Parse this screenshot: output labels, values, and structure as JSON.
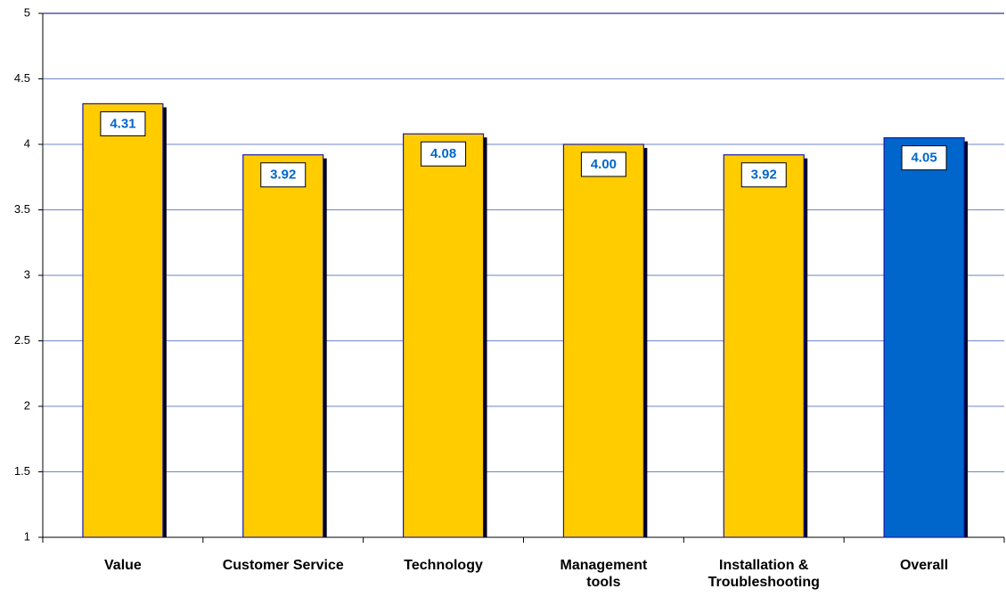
{
  "chart_data": {
    "type": "bar",
    "categories": [
      "Value",
      "Customer Service",
      "Technology",
      "Management tools",
      "Installation & Troubleshooting",
      "Overall"
    ],
    "values": [
      4.31,
      3.92,
      4.08,
      4.0,
      3.92,
      4.05
    ],
    "value_labels": [
      "4.31",
      "3.92",
      "4.08",
      "4.00",
      "3.92",
      "4.05"
    ],
    "colors": [
      "#ffcc00",
      "#ffcc00",
      "#ffcc00",
      "#ffcc00",
      "#ffcc00",
      "#0066cc"
    ],
    "ylim": [
      1,
      5
    ],
    "yticks": [
      1,
      1.5,
      2,
      2.5,
      3,
      3.5,
      4,
      4.5,
      5
    ],
    "grid": true
  }
}
